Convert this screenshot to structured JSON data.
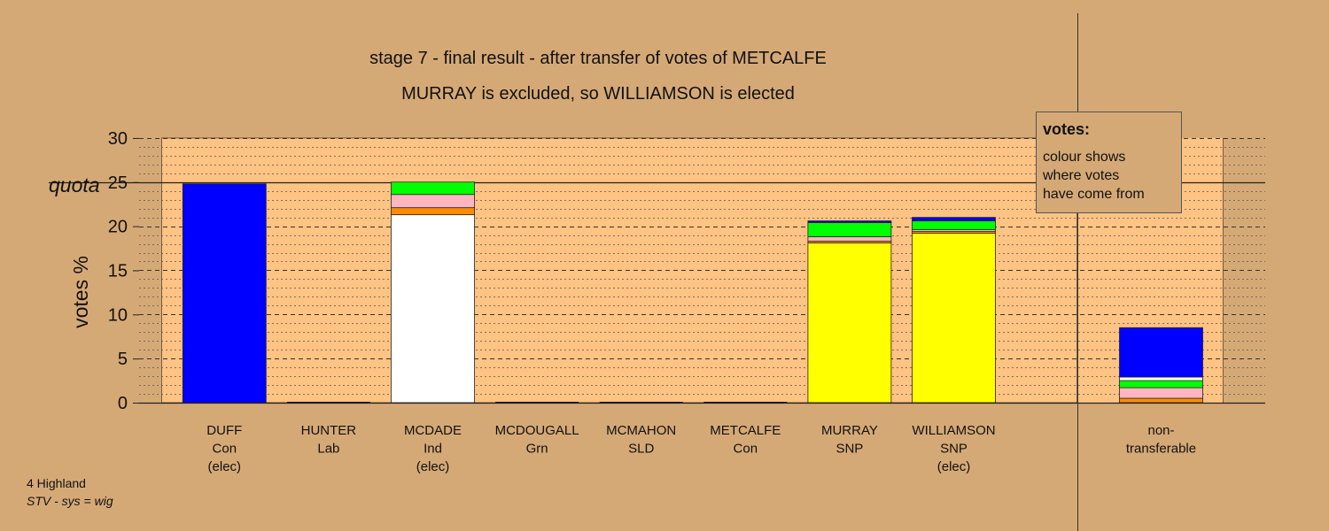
{
  "chart_data": {
    "type": "bar",
    "stacked": true,
    "title": "stage 7 - final result - after transfer of votes of METCALFE",
    "subtitle": "MURRAY is excluded, so WILLIAMSON is elected",
    "ylabel": "votes %",
    "ylim": [
      0,
      30
    ],
    "yticks": [
      0,
      5,
      10,
      15,
      20,
      25,
      30
    ],
    "quota": {
      "label": "quota",
      "value": 25
    },
    "grid": true,
    "legend": {
      "title": "votes:",
      "lines": [
        "colour shows",
        "where votes",
        "have come from"
      ],
      "position": "top-right"
    },
    "bars": [
      {
        "name": "DUFF",
        "party": "Con",
        "note": "(elec)",
        "segments": [
          {
            "color": "#0000ff",
            "value": 24.8
          }
        ]
      },
      {
        "name": "HUNTER",
        "party": "Lab",
        "note": "",
        "segments": []
      },
      {
        "name": "MCDADE",
        "party": "Ind",
        "note": "(elec)",
        "segments": [
          {
            "color": "#ffffff",
            "value": 21.3
          },
          {
            "color": "#ff8c00",
            "value": 0.8
          },
          {
            "color": "#ffb6c1",
            "value": 1.5
          },
          {
            "color": "#00ff00",
            "value": 1.4
          }
        ]
      },
      {
        "name": "MCDOUGALL",
        "party": "Grn",
        "note": "",
        "segments": []
      },
      {
        "name": "MCMAHON",
        "party": "SLD",
        "note": "",
        "segments": []
      },
      {
        "name": "METCALFE",
        "party": "Con",
        "note": "",
        "segments": []
      },
      {
        "name": "MURRAY",
        "party": "SNP",
        "note": "",
        "segments": [
          {
            "color": "#ffff00",
            "value": 18.1
          },
          {
            "color": "#ff8c00",
            "value": 0.2
          },
          {
            "color": "#ffb6c1",
            "value": 0.5
          },
          {
            "color": "#00ff00",
            "value": 1.6
          },
          {
            "color": "#0000ff",
            "value": 0.2
          }
        ]
      },
      {
        "name": "WILLIAMSON",
        "party": "SNP",
        "note": "(elec)",
        "segments": [
          {
            "color": "#ffff00",
            "value": 19.2
          },
          {
            "color": "#ff8c00",
            "value": 0.2
          },
          {
            "color": "#ffb6c1",
            "value": 0.2
          },
          {
            "color": "#00ff00",
            "value": 1.0
          },
          {
            "color": "#0000ff",
            "value": 0.4
          }
        ]
      }
    ],
    "nontransferable": {
      "lines": [
        "non-",
        "transferable"
      ],
      "segments": [
        {
          "color": "#ff8c00",
          "value": 0.5
        },
        {
          "color": "#ffb6c1",
          "value": 1.2
        },
        {
          "color": "#00ff00",
          "value": 0.8
        },
        {
          "color": "#ffffff",
          "value": 0.4
        },
        {
          "color": "#0000ff",
          "value": 5.6
        }
      ]
    }
  },
  "footer": {
    "line1": "4 Highland",
    "line2": "STV - sys = wig"
  }
}
